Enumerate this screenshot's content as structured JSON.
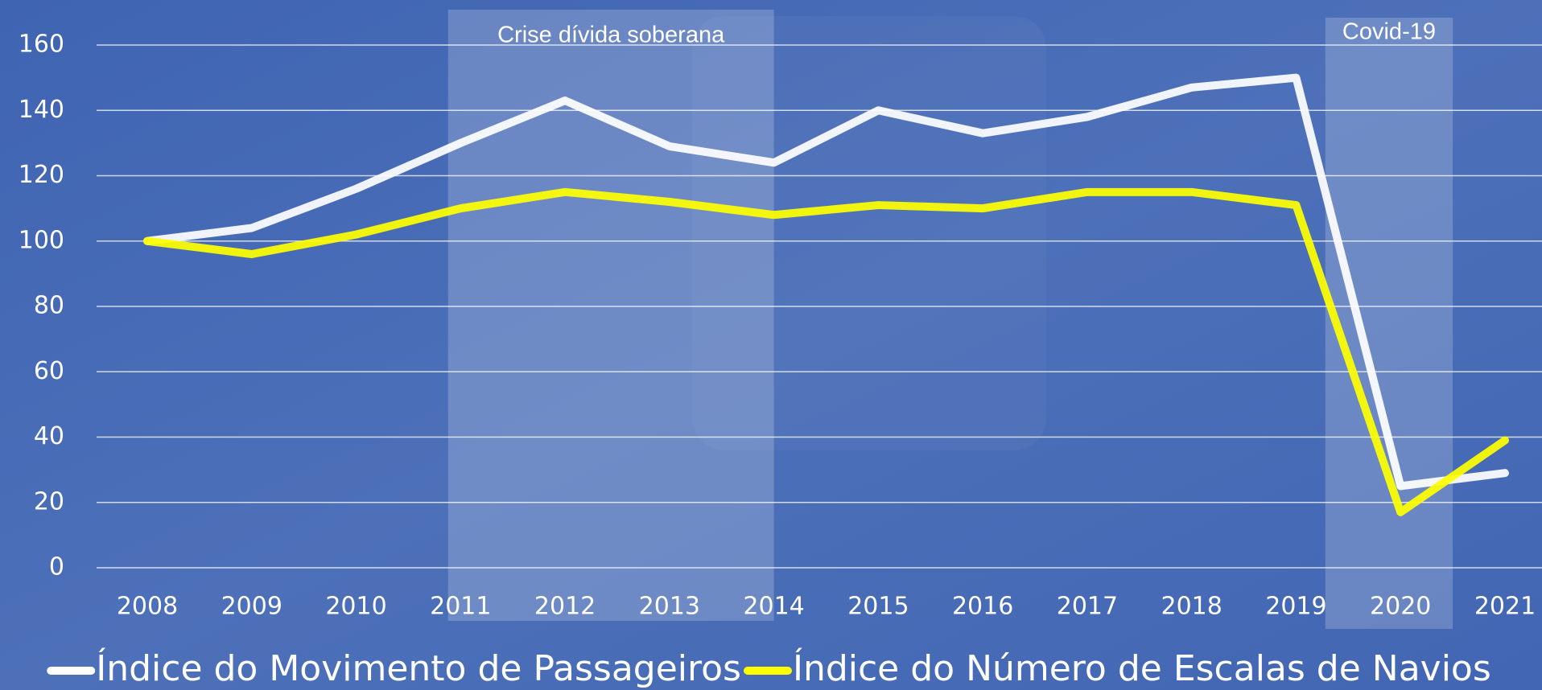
{
  "chart_data": {
    "type": "line",
    "categories": [
      "2008",
      "2009",
      "2010",
      "2011",
      "2012",
      "2013",
      "2014",
      "2015",
      "2016",
      "2017",
      "2018",
      "2019",
      "2020",
      "2021"
    ],
    "series": [
      {
        "name": "Índice do Movimento de Passageiros",
        "color": "#ffffff",
        "values": [
          100,
          104,
          116,
          130,
          143,
          129,
          124,
          140,
          133,
          138,
          147,
          150,
          25,
          29
        ]
      },
      {
        "name": "Índice do Número de Escalas de Navios",
        "color": "#ffff00",
        "values": [
          100,
          96,
          102,
          110,
          115,
          112,
          108,
          111,
          110,
          115,
          115,
          111,
          17,
          39
        ]
      }
    ],
    "ylim": [
      0,
      160
    ],
    "yticks": [
      0,
      20,
      40,
      60,
      80,
      100,
      120,
      140,
      160
    ],
    "grid": true,
    "legend": "bottom",
    "annotations": [
      {
        "text": "Crise dívida soberana",
        "start": "2011",
        "end": "2014"
      },
      {
        "text": "Covid-19",
        "start": "2020",
        "end": "2020"
      }
    ]
  }
}
